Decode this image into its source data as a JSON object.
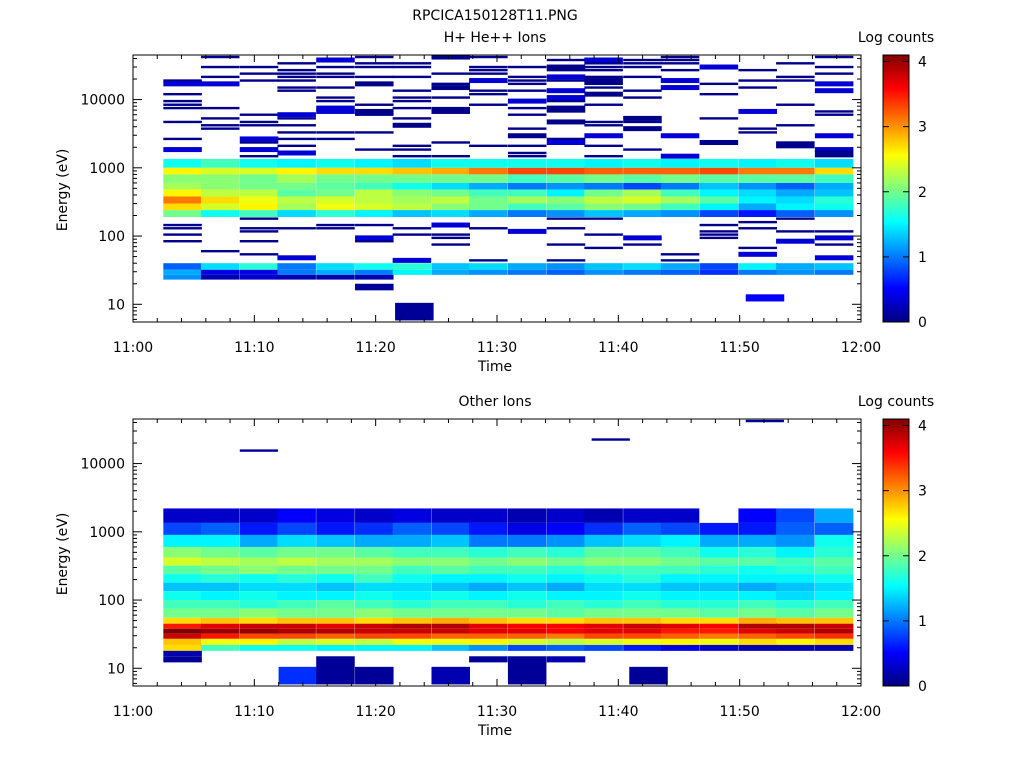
{
  "figure_title": "RPCICA150128T11.PNG",
  "colors": {
    "colormap": [
      "#00007f",
      "#0000ff",
      "#007fff",
      "#00ffff",
      "#7fff7f",
      "#ffff00",
      "#ff7f00",
      "#ff0000",
      "#7f0000"
    ],
    "background": "#ffffff",
    "frame": "#000000"
  },
  "chart_data": [
    {
      "type": "heatmap",
      "title": "H+ He++ Ions",
      "xlabel": "Time",
      "ylabel": "Energy (eV)",
      "colorbar_label": "Log counts",
      "colorbar_ticks": [
        "0",
        "1",
        "2",
        "3",
        "4"
      ],
      "color_range": [
        0,
        4.1
      ],
      "xlim_minutes": [
        0,
        60
      ],
      "x_ticks": [
        "11:00",
        "11:10",
        "11:20",
        "11:30",
        "11:40",
        "11:50",
        "12:00"
      ],
      "y_scale": "log",
      "ylim": [
        5.5,
        45000
      ],
      "y_ticks": [
        "10",
        "100",
        "1000",
        "10000"
      ],
      "time_bins_start_minutes": [
        2.5,
        5.6,
        8.8,
        11.9,
        15.1,
        18.3,
        21.4,
        24.6,
        27.7,
        30.9,
        34.1,
        37.2,
        40.4,
        43.5,
        46.7,
        49.9,
        53.0,
        56.2
      ],
      "time_bin_width_minutes": 3.15,
      "energy_band_edges_eV": [
        [
          1000,
          1350
        ],
        [
          800,
          1000
        ],
        [
          600,
          800
        ],
        [
          480,
          600
        ],
        [
          380,
          480
        ],
        [
          300,
          380
        ],
        [
          240,
          300
        ],
        [
          190,
          240
        ]
      ],
      "bands": [
        {
          "band": 0,
          "values": [
            1.6,
            1.8,
            1.6,
            1.5,
            1.6,
            1.5,
            1.4,
            1.6,
            1.6,
            1.6,
            1.6,
            1.5,
            1.6,
            1.5,
            1.6,
            1.5,
            1.6,
            1.4
          ]
        },
        {
          "band": 1,
          "values": [
            2.6,
            2.4,
            2.4,
            2.6,
            2.7,
            2.7,
            2.8,
            2.9,
            3.1,
            3.3,
            3.3,
            3.2,
            3.2,
            3.2,
            3.3,
            3.1,
            3.1,
            2.7
          ]
        },
        {
          "band": 2,
          "values": [
            2.1,
            2.1,
            2.0,
            2.2,
            2.0,
            2.0,
            2.0,
            2.0,
            2.0,
            1.8,
            1.9,
            2.0,
            1.9,
            2.0,
            1.9,
            1.9,
            1.9,
            1.8
          ]
        },
        {
          "band": 3,
          "values": [
            2.2,
            2.1,
            2.0,
            2.0,
            1.9,
            1.8,
            1.6,
            1.4,
            1.2,
            1.0,
            1.1,
            1.0,
            0.8,
            1.0,
            1.3,
            1.1,
            0.9,
            1.2
          ]
        },
        {
          "band": 4,
          "values": [
            2.6,
            2.3,
            2.3,
            1.9,
            2.0,
            2.3,
            2.1,
            2.0,
            1.8,
            1.8,
            1.5,
            2.0,
            2.2,
            1.8,
            1.5,
            1.4,
            1.2,
            1.3
          ]
        },
        {
          "band": 5,
          "values": [
            3.1,
            2.7,
            2.5,
            2.3,
            2.4,
            2.3,
            2.2,
            2.3,
            2.0,
            2.2,
            2.1,
            2.3,
            2.4,
            2.2,
            1.9,
            1.5,
            1.4,
            1.7
          ]
        },
        {
          "band": 6,
          "values": [
            2.7,
            2.4,
            2.6,
            2.2,
            2.5,
            2.4,
            2.3,
            2.1,
            2.0,
            1.8,
            1.9,
            2.1,
            2.0,
            1.8,
            1.5,
            1.2,
            1.5,
            1.6
          ]
        },
        {
          "band": 7,
          "values": [
            2.0,
            1.6,
            1.8,
            1.4,
            1.7,
            1.5,
            1.3,
            1.4,
            1.2,
            1.0,
            1.1,
            1.3,
            1.2,
            1.1,
            0.8,
            0.6,
            0.9,
            1.1
          ]
        }
      ],
      "low_energy_bands": [
        {
          "lo_eV": 32,
          "hi_eV": 40,
          "values": [
            0.9,
            1.4,
            1.7,
            1.0,
            1.4,
            1.6,
            1.7,
            1.3,
            1.4,
            1.2,
            1.1,
            1.3,
            1.4,
            1.2,
            0.8,
            1.5,
            1.2,
            1.3
          ]
        },
        {
          "lo_eV": 27,
          "hi_eV": 32,
          "values": [
            1.2,
            0.4,
            0.4,
            1.0,
            1.2,
            1.0,
            1.5,
            1.2,
            1.1,
            1.0,
            0.9,
            1.1,
            1.0,
            0.9,
            0.7,
            1.0,
            1.1,
            1.0
          ]
        },
        {
          "lo_eV": 23,
          "hi_eV": 27,
          "values": [
            1.1,
            0.2,
            0.3,
            0.2,
            0.2,
            0.2,
            null,
            null,
            null,
            null,
            null,
            null,
            null,
            null,
            null,
            null,
            null,
            null
          ]
        }
      ],
      "isolated_cells": [
        {
          "t_start_min": 18.3,
          "lo_eV": 16,
          "hi_eV": 20,
          "value": 0.1
        },
        {
          "t_start_min": 21.6,
          "lo_eV": 5.8,
          "hi_eV": 10.5,
          "value": 0.1
        },
        {
          "t_start_min": 50.5,
          "lo_eV": 11,
          "hi_eV": 14,
          "value": 0.5
        }
      ],
      "high_energy_lines_eV": [
        42000,
        38000,
        34000,
        30000,
        27000,
        24000,
        21500,
        19000,
        17000,
        15000,
        13500,
        12000,
        10700,
        9500,
        8400,
        7500,
        6700,
        6000,
        5300,
        4700,
        4200,
        3750,
        3300,
        2950,
        2650,
        2350,
        2100,
        1850,
        1650,
        1480
      ],
      "high_energy_fill_fraction": 0.33,
      "mid_energy_lines_eV": [
        180,
        160,
        145,
        130,
        117,
        105,
        94,
        84,
        75,
        67,
        60,
        54,
        48,
        44
      ],
      "mid_energy_fill_fraction": 0.18
    },
    {
      "type": "heatmap",
      "title": "Other Ions",
      "xlabel": "Time",
      "ylabel": "Energy (eV)",
      "colorbar_label": "Log counts",
      "colorbar_ticks": [
        "0",
        "1",
        "2",
        "3",
        "4"
      ],
      "color_range": [
        0,
        4.1
      ],
      "xlim_minutes": [
        0,
        60
      ],
      "x_ticks": [
        "11:00",
        "11:10",
        "11:20",
        "11:30",
        "11:40",
        "11:50",
        "12:00"
      ],
      "y_scale": "log",
      "ylim": [
        5.5,
        45000
      ],
      "y_ticks": [
        "10",
        "100",
        "1000",
        "10000"
      ],
      "time_bins_start_minutes": [
        2.5,
        5.6,
        8.8,
        11.9,
        15.1,
        18.3,
        21.4,
        24.6,
        27.7,
        30.9,
        34.1,
        37.2,
        40.4,
        43.5,
        46.7,
        49.9,
        53.0,
        56.2
      ],
      "time_bin_width_minutes": 3.15,
      "energy_band_edges_eV": [
        [
          1350,
          2200
        ],
        [
          900,
          1350
        ],
        [
          600,
          900
        ],
        [
          420,
          600
        ],
        [
          320,
          420
        ],
        [
          240,
          320
        ],
        [
          180,
          240
        ],
        [
          135,
          180
        ],
        [
          100,
          135
        ],
        [
          75,
          100
        ],
        [
          55,
          75
        ],
        [
          45,
          55
        ],
        [
          38,
          45
        ],
        [
          32,
          38
        ],
        [
          27,
          32
        ],
        [
          22,
          27
        ],
        [
          18,
          22
        ],
        [
          15,
          18
        ]
      ],
      "bands": [
        {
          "band": 0,
          "values": [
            0.3,
            0.3,
            0.3,
            0.5,
            0.4,
            0.3,
            0.4,
            0.3,
            0.3,
            0.2,
            0.3,
            0.2,
            0.3,
            0.3,
            null,
            0.5,
            0.8,
            1.2
          ]
        },
        {
          "band": 1,
          "values": [
            0.8,
            0.9,
            0.6,
            0.8,
            0.6,
            0.7,
            0.9,
            0.8,
            0.6,
            0.4,
            0.5,
            0.7,
            0.9,
            0.8,
            0.6,
            0.6,
            0.9,
            0.9
          ]
        },
        {
          "band": 2,
          "values": [
            1.5,
            1.5,
            1.2,
            1.4,
            1.3,
            1.2,
            1.2,
            1.3,
            1.0,
            1.0,
            1.1,
            1.3,
            1.4,
            1.5,
            1.2,
            1.2,
            1.1,
            1.6
          ]
        },
        {
          "band": 3,
          "values": [
            2.1,
            2.0,
            1.9,
            2.0,
            2.0,
            1.9,
            1.8,
            1.8,
            1.7,
            1.8,
            1.7,
            1.9,
            1.9,
            1.8,
            1.6,
            1.7,
            1.5,
            1.7
          ]
        },
        {
          "band": 4,
          "values": [
            2.4,
            2.3,
            2.2,
            2.3,
            2.2,
            2.2,
            2.1,
            2.1,
            2.0,
            2.1,
            2.0,
            2.1,
            2.1,
            2.0,
            1.9,
            1.9,
            1.8,
            1.9
          ]
        },
        {
          "band": 5,
          "values": [
            1.9,
            2.0,
            2.1,
            2.0,
            2.0,
            2.0,
            1.8,
            1.9,
            1.8,
            1.8,
            1.7,
            1.8,
            1.8,
            1.8,
            1.7,
            1.6,
            1.7,
            1.8
          ]
        },
        {
          "band": 6,
          "values": [
            1.6,
            1.7,
            1.6,
            1.7,
            1.6,
            1.8,
            1.6,
            1.5,
            1.5,
            1.6,
            1.5,
            1.6,
            1.7,
            1.5,
            1.5,
            1.5,
            1.5,
            1.6
          ]
        },
        {
          "band": 7,
          "values": [
            1.3,
            1.3,
            1.4,
            1.4,
            1.3,
            1.4,
            1.4,
            1.3,
            1.2,
            1.3,
            1.2,
            1.4,
            1.4,
            1.3,
            1.3,
            1.2,
            1.3,
            1.4
          ]
        },
        {
          "band": 8,
          "values": [
            1.6,
            1.5,
            1.6,
            1.5,
            1.5,
            1.6,
            1.5,
            1.6,
            1.5,
            1.6,
            1.5,
            1.5,
            1.6,
            1.5,
            1.5,
            1.5,
            1.4,
            1.5
          ]
        },
        {
          "band": 9,
          "values": [
            1.8,
            1.8,
            1.7,
            1.8,
            1.9,
            1.8,
            1.7,
            1.8,
            1.8,
            1.7,
            1.8,
            1.7,
            1.8,
            1.7,
            1.7,
            1.8,
            1.7,
            1.8
          ]
        },
        {
          "band": 10,
          "values": [
            2.0,
            2.0,
            2.1,
            2.0,
            2.0,
            2.1,
            2.0,
            2.0,
            2.0,
            2.0,
            1.9,
            2.0,
            2.0,
            2.0,
            1.9,
            2.0,
            1.9,
            2.0
          ]
        },
        {
          "band": 11,
          "values": [
            2.7,
            2.8,
            2.7,
            2.8,
            2.8,
            2.7,
            2.8,
            2.9,
            2.8,
            2.7,
            2.7,
            2.8,
            2.8,
            2.7,
            2.7,
            2.9,
            2.8,
            2.8
          ]
        },
        {
          "band": 12,
          "values": [
            3.5,
            3.7,
            3.8,
            3.8,
            3.7,
            3.8,
            3.9,
            3.9,
            3.7,
            3.6,
            3.6,
            3.7,
            3.8,
            3.7,
            3.6,
            3.9,
            3.9,
            3.8
          ]
        },
        {
          "band": 13,
          "values": [
            4.1,
            4.0,
            4.0,
            3.9,
            3.9,
            3.8,
            3.8,
            3.8,
            3.7,
            3.7,
            3.6,
            3.7,
            3.7,
            3.5,
            3.5,
            3.7,
            3.8,
            3.9
          ]
        },
        {
          "band": 14,
          "values": [
            3.8,
            3.5,
            3.3,
            3.3,
            3.2,
            3.3,
            3.3,
            3.2,
            3.2,
            3.2,
            3.1,
            3.3,
            3.3,
            3.2,
            3.1,
            3.2,
            3.3,
            3.4
          ]
        },
        {
          "band": 15,
          "values": [
            2.8,
            2.5,
            2.6,
            2.3,
            2.4,
            2.3,
            2.5,
            2.5,
            2.6,
            2.4,
            2.3,
            2.4,
            2.5,
            2.6,
            2.5,
            2.7,
            2.6,
            2.7
          ]
        },
        {
          "band": 16,
          "values": [
            2.7,
            1.8,
            1.6,
            1.6,
            1.5,
            1.5,
            1.5,
            1.3,
            1.1,
            0.8,
            0.9,
            0.8,
            0.6,
            0.4,
            0.3,
            0.2,
            0.2,
            0.2
          ]
        },
        {
          "band": 17,
          "values": [
            0.2,
            null,
            null,
            null,
            null,
            null,
            null,
            null,
            null,
            null,
            null,
            null,
            null,
            null,
            null,
            null,
            null,
            null
          ]
        }
      ],
      "isolated_cells": [
        {
          "t_start_min": 2.5,
          "lo_eV": 12.2,
          "hi_eV": 15,
          "value": 0.1
        },
        {
          "t_start_min": 12.0,
          "lo_eV": 5.8,
          "hi_eV": 10.5,
          "value": 0.7
        },
        {
          "t_start_min": 15.1,
          "lo_eV": 5.8,
          "hi_eV": 15,
          "value": 0.1
        },
        {
          "t_start_min": 18.3,
          "lo_eV": 5.8,
          "hi_eV": 10.5,
          "value": 0.1
        },
        {
          "t_start_min": 24.6,
          "lo_eV": 5.8,
          "hi_eV": 10.5,
          "value": 0.2
        },
        {
          "t_start_min": 27.7,
          "lo_eV": 12.2,
          "hi_eV": 15,
          "value": 0.1
        },
        {
          "t_start_min": 30.9,
          "lo_eV": 5.8,
          "hi_eV": 15,
          "value": 0.1
        },
        {
          "t_start_min": 34.1,
          "lo_eV": 12.2,
          "hi_eV": 15,
          "value": 0.2
        },
        {
          "t_start_min": 40.9,
          "lo_eV": 5.8,
          "hi_eV": 10.5,
          "value": 0.1
        }
      ],
      "extra_lines_eV": [
        {
          "t_start_min": 8.8,
          "energy": 15500,
          "value": 0.1
        },
        {
          "t_start_min": 37.8,
          "energy": 22500,
          "value": 0.1
        },
        {
          "t_start_min": 50.5,
          "energy": 42000,
          "value": 0.1
        }
      ]
    }
  ]
}
